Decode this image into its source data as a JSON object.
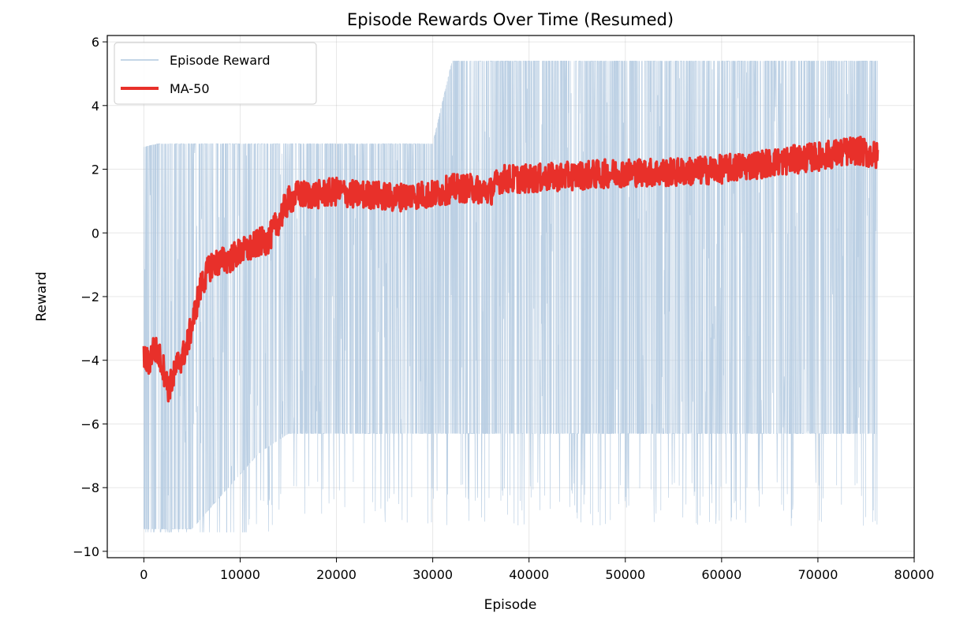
{
  "chart_data": {
    "type": "line",
    "title": "Episode Rewards Over Time (Resumed)",
    "xlabel": "Episode",
    "ylabel": "Reward",
    "xlim": [
      -3800,
      80000
    ],
    "ylim": [
      -10.2,
      6.2
    ],
    "xticks": [
      0,
      10000,
      20000,
      30000,
      40000,
      50000,
      60000,
      70000,
      80000
    ],
    "xtick_labels": [
      "0",
      "10000",
      "20000",
      "30000",
      "40000",
      "50000",
      "60000",
      "70000",
      "80000"
    ],
    "yticks": [
      -10,
      -8,
      -6,
      -4,
      -2,
      0,
      2,
      4,
      6
    ],
    "ytick_labels": [
      "−10",
      "−8",
      "−6",
      "−4",
      "−2",
      "0",
      "2",
      "4",
      "6"
    ],
    "grid": true,
    "legend_position": "top-left",
    "series": [
      {
        "name": "Episode Reward",
        "color": "#b0c8df",
        "style": "thin",
        "envelope": {
          "x": [
            0,
            1500,
            5000,
            7000,
            12000,
            15000,
            30000,
            32000,
            34000,
            37000,
            45000,
            60000,
            70000,
            76200
          ],
          "upper": [
            2.7,
            2.8,
            2.8,
            2.8,
            2.8,
            2.8,
            2.8,
            5.4,
            5.4,
            5.4,
            5.4,
            5.4,
            5.4,
            5.4
          ],
          "lower": [
            -9.3,
            -9.3,
            -9.3,
            -8.6,
            -6.9,
            -6.3,
            -6.3,
            -6.3,
            -6.3,
            -6.3,
            -6.3,
            -6.3,
            -6.3,
            -6.3
          ]
        }
      },
      {
        "name": "MA-50",
        "color": "#e8302a",
        "style": "thick",
        "points": [
          {
            "x": 0,
            "y": -3.9
          },
          {
            "x": 500,
            "y": -4.1
          },
          {
            "x": 1000,
            "y": -3.6
          },
          {
            "x": 1500,
            "y": -3.8
          },
          {
            "x": 2000,
            "y": -4.2
          },
          {
            "x": 2500,
            "y": -4.9
          },
          {
            "x": 3000,
            "y": -4.6
          },
          {
            "x": 3500,
            "y": -4.1
          },
          {
            "x": 4000,
            "y": -3.9
          },
          {
            "x": 4500,
            "y": -3.5
          },
          {
            "x": 5000,
            "y": -2.9
          },
          {
            "x": 5500,
            "y": -2.2
          },
          {
            "x": 6000,
            "y": -1.6
          },
          {
            "x": 7000,
            "y": -1.0
          },
          {
            "x": 8000,
            "y": -0.9
          },
          {
            "x": 9000,
            "y": -0.8
          },
          {
            "x": 10000,
            "y": -0.6
          },
          {
            "x": 11000,
            "y": -0.5
          },
          {
            "x": 12000,
            "y": -0.3
          },
          {
            "x": 13000,
            "y": -0.2
          },
          {
            "x": 14000,
            "y": 0.4
          },
          {
            "x": 15000,
            "y": 1.0
          },
          {
            "x": 16000,
            "y": 1.2
          },
          {
            "x": 18000,
            "y": 1.2
          },
          {
            "x": 20000,
            "y": 1.3
          },
          {
            "x": 22000,
            "y": 1.2
          },
          {
            "x": 24000,
            "y": 1.2
          },
          {
            "x": 26000,
            "y": 1.1
          },
          {
            "x": 28000,
            "y": 1.2
          },
          {
            "x": 30000,
            "y": 1.2
          },
          {
            "x": 32000,
            "y": 1.4
          },
          {
            "x": 34000,
            "y": 1.4
          },
          {
            "x": 36000,
            "y": 1.3
          },
          {
            "x": 37000,
            "y": 1.7
          },
          {
            "x": 40000,
            "y": 1.7
          },
          {
            "x": 45000,
            "y": 1.8
          },
          {
            "x": 50000,
            "y": 1.9
          },
          {
            "x": 55000,
            "y": 1.9
          },
          {
            "x": 60000,
            "y": 2.0
          },
          {
            "x": 65000,
            "y": 2.2
          },
          {
            "x": 70000,
            "y": 2.4
          },
          {
            "x": 74000,
            "y": 2.6
          },
          {
            "x": 76200,
            "y": 2.4
          }
        ]
      }
    ]
  }
}
